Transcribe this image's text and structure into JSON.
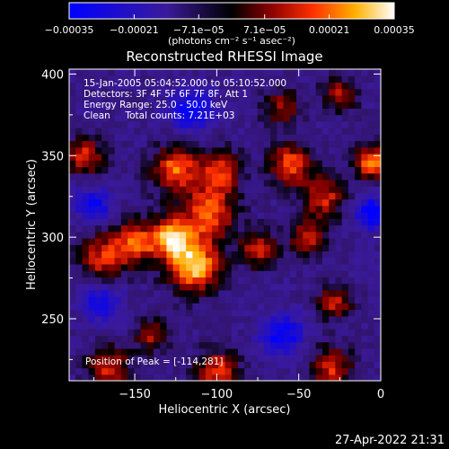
{
  "chart_data": {
    "type": "heatmap",
    "title": "Reconstructed RHESSI Image",
    "xlabel": "Heliocentric X (arcsec)",
    "ylabel": "Heliocentric Y (arcsec)",
    "xlim": [
      -190,
      0
    ],
    "ylim": [
      212,
      403
    ],
    "xticks": [
      -150,
      -100,
      -50,
      0
    ],
    "xtick_labels": [
      "−150",
      "−100",
      "−50",
      "0"
    ],
    "yticks": [
      250,
      300,
      350,
      400
    ],
    "ytick_labels": [
      "250",
      "300",
      "350",
      "400"
    ],
    "colorbar": {
      "range": [
        -0.00035,
        0.00035
      ],
      "ticks": [
        -0.00035,
        -0.00021,
        -7.1e-05,
        7.1e-05,
        0.00021,
        0.00035
      ],
      "tick_labels": [
        "−0.00035",
        "−0.00021",
        "−7.1e−05",
        "7.1e−05",
        "0.00021",
        "0.00035"
      ],
      "unit_label": "(photons cm⁻² s⁻¹ asec⁻²)",
      "colors": [
        "#0000ff",
        "#3a1a9a",
        "#000000",
        "#8a0000",
        "#ff3000",
        "#ffb000",
        "#ffffff"
      ]
    },
    "annotations": [
      "15-Jan-2005 05:04:52.000 to 05:10:52.000",
      "Detectors: 3F 4F 5F 6F 7F 8F, Att 1",
      "Energy Range: 25.0 - 50.0 keV",
      "Clean     Total counts: 7.21E+03"
    ],
    "peak_label": "Position of Peak = [-114,281]",
    "peak_position": [
      -114,
      281
    ],
    "features": [
      {
        "x": -114,
        "y": 283,
        "intensity": 1.0,
        "sigma": 11
      },
      {
        "x": -128,
        "y": 300,
        "intensity": 0.85,
        "sigma": 9
      },
      {
        "x": -105,
        "y": 315,
        "intensity": 0.75,
        "sigma": 11
      },
      {
        "x": -125,
        "y": 342,
        "intensity": 0.75,
        "sigma": 10
      },
      {
        "x": -98,
        "y": 340,
        "intensity": 0.65,
        "sigma": 9
      },
      {
        "x": -150,
        "y": 297,
        "intensity": 0.7,
        "sigma": 9
      },
      {
        "x": -170,
        "y": 288,
        "intensity": 0.6,
        "sigma": 10
      },
      {
        "x": -180,
        "y": 350,
        "intensity": 0.6,
        "sigma": 8
      },
      {
        "x": -55,
        "y": 345,
        "intensity": 0.7,
        "sigma": 9
      },
      {
        "x": -35,
        "y": 325,
        "intensity": 0.6,
        "sigma": 9
      },
      {
        "x": -5,
        "y": 346,
        "intensity": 0.85,
        "sigma": 7
      },
      {
        "x": -45,
        "y": 300,
        "intensity": 0.55,
        "sigma": 8
      },
      {
        "x": -75,
        "y": 293,
        "intensity": 0.55,
        "sigma": 8
      },
      {
        "x": -28,
        "y": 260,
        "intensity": 0.6,
        "sigma": 7
      },
      {
        "x": -140,
        "y": 240,
        "intensity": 0.5,
        "sigma": 7
      },
      {
        "x": -100,
        "y": 218,
        "intensity": 0.65,
        "sigma": 9
      },
      {
        "x": -165,
        "y": 220,
        "intensity": 0.6,
        "sigma": 9
      },
      {
        "x": -30,
        "y": 220,
        "intensity": 0.6,
        "sigma": 9
      },
      {
        "x": -25,
        "y": 388,
        "intensity": 0.55,
        "sigma": 7
      },
      {
        "x": -60,
        "y": 380,
        "intensity": 0.45,
        "sigma": 8
      }
    ],
    "negative_features": [
      {
        "x": -115,
        "y": 378,
        "intensity": 0.35,
        "sigma": 9
      },
      {
        "x": -5,
        "y": 315,
        "intensity": 0.4,
        "sigma": 7
      },
      {
        "x": -175,
        "y": 320,
        "intensity": 0.3,
        "sigma": 8
      },
      {
        "x": -60,
        "y": 240,
        "intensity": 0.35,
        "sigma": 9
      },
      {
        "x": -170,
        "y": 260,
        "intensity": 0.3,
        "sigma": 8
      }
    ]
  },
  "timestamp": "27-Apr-2022 21:31"
}
